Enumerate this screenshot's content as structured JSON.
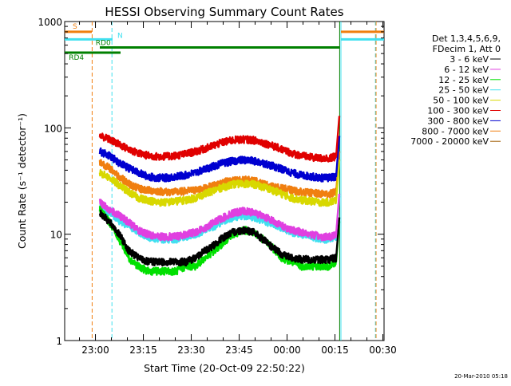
{
  "chart_data": {
    "type": "line",
    "title": "HESSI Observing Summary Count Rates",
    "xlabel": "Start Time (20-Oct-09 22:50:22)",
    "ylabel": "Count Rate (s⁻¹ detector⁻¹)",
    "yscale": "log",
    "ylim": [
      1,
      1000
    ],
    "xlim_minutes_after_start": [
      0,
      100
    ],
    "x_ticks": [
      "23:00",
      "23:15",
      "23:30",
      "23:45",
      "00:00",
      "00:15",
      "00:30"
    ],
    "x_tick_minutes": [
      9.633,
      24.633,
      39.633,
      54.633,
      69.633,
      84.633,
      99.633
    ],
    "y_ticks": [
      "1",
      "10",
      "100",
      "1000"
    ],
    "y_tick_values": [
      1,
      10,
      100,
      1000
    ],
    "legend_header": [
      "Det 1,3,4,5,6,9,",
      "FDecim 1, Att 0"
    ],
    "legend_position": "right",
    "grid": false,
    "timestamp": "20-Mar-2010 05:18",
    "flags": [
      {
        "label": "S",
        "color": "#f07f10",
        "level": 800
      },
      {
        "label": "N",
        "color": "#40e0f0",
        "level": 680
      },
      {
        "label": "RD0",
        "color": "#008000",
        "level": 570
      },
      {
        "label": "RD4",
        "color": "#008000",
        "level": 510
      }
    ],
    "flag_bar_segments": {
      "S": [
        [
          0,
          8.5
        ],
        [
          86.5,
          100
        ]
      ],
      "N": [
        [
          0,
          15
        ],
        [
          86.5,
          100
        ]
      ],
      "RD0": [
        [
          11,
          86
        ]
      ],
      "RD4": [
        [
          0,
          17.5
        ]
      ]
    },
    "event_lines": [
      {
        "minute": 8.6,
        "color": "#f07f10",
        "style": "dashed"
      },
      {
        "minute": 14.8,
        "color": "#40e0f0",
        "style": "dashed"
      },
      {
        "minute": 86.1,
        "color": "#008000",
        "style": "solid"
      },
      {
        "minute": 86.5,
        "color": "#40e0f0",
        "style": "solid"
      },
      {
        "minute": 97.3,
        "color": "#40e0f0",
        "style": "dashed"
      },
      {
        "minute": 97.5,
        "color": "#f07f10",
        "style": "dashed"
      }
    ],
    "x_minutes": [
      11,
      14,
      17,
      20,
      23,
      26,
      29,
      32,
      35,
      38,
      41,
      44,
      47,
      50,
      53,
      56,
      59,
      62,
      65,
      68,
      71,
      74,
      77,
      80,
      83,
      85
    ],
    "series": [
      {
        "name": "3 - 6 keV",
        "color": "#000000",
        "values": [
          16,
          13,
          10,
          7,
          6,
          5.5,
          5.5,
          5.5,
          5.5,
          5.5,
          6,
          7,
          8,
          9.5,
          10.5,
          11,
          10.5,
          9,
          7.5,
          6.5,
          6,
          5.8,
          5.8,
          5.8,
          5.8,
          6
        ]
      },
      {
        "name": "6 - 12 keV",
        "color": "#e040e0",
        "values": [
          20,
          17,
          15,
          13,
          11,
          10,
          9.5,
          9.5,
          9.5,
          10,
          10.5,
          11.5,
          13,
          14.5,
          16,
          16.5,
          16,
          15,
          13.5,
          12,
          11,
          10.5,
          10,
          9.5,
          9.5,
          10
        ]
      },
      {
        "name": "12 - 25 keV",
        "color": "#00e000",
        "values": [
          17,
          13,
          9,
          6,
          5,
          4.5,
          4.5,
          4.5,
          4.5,
          5,
          5,
          6,
          7,
          8.5,
          10,
          11,
          10.5,
          9,
          7.5,
          6,
          5.5,
          5,
          5,
          5,
          5,
          5.5
        ]
      },
      {
        "name": "25 - 50 keV",
        "color": "#40e0f0",
        "values": [
          18,
          16,
          13.5,
          12,
          10.5,
          9.5,
          9,
          9,
          9,
          9.5,
          10,
          11,
          12,
          13.5,
          14.5,
          15,
          14.5,
          13.5,
          12.5,
          11.5,
          10.5,
          10,
          9.5,
          9,
          9,
          9.5
        ]
      },
      {
        "name": "50 - 100 keV",
        "color": "#d8d800",
        "values": [
          38,
          34,
          29,
          25,
          22,
          21,
          20,
          20,
          20.5,
          21,
          22,
          24,
          26,
          28,
          29.5,
          30,
          29.5,
          28,
          26,
          24,
          22,
          21,
          20.5,
          20,
          20,
          21
        ]
      },
      {
        "name": "100 - 300 keV",
        "color": "#e00000",
        "values": [
          85,
          78,
          70,
          63,
          58,
          55,
          54,
          54,
          55,
          57,
          60,
          64,
          69,
          74,
          77,
          78,
          77,
          73,
          68,
          63,
          58,
          55,
          53,
          52,
          52,
          54
        ]
      },
      {
        "name": "300 - 800 keV",
        "color": "#0000d0",
        "values": [
          60,
          55,
          47,
          42,
          38,
          35,
          34,
          34,
          35,
          36,
          38,
          41,
          44,
          47,
          49,
          50,
          49,
          47,
          44,
          41,
          38,
          36,
          35,
          34,
          34,
          35
        ]
      },
      {
        "name": "800 - 7000 keV",
        "color": "#f07f10",
        "values": [
          48,
          42,
          35,
          30,
          27,
          26,
          25.5,
          25,
          25,
          25.5,
          26,
          27,
          29,
          31,
          32,
          32.5,
          32,
          30,
          28,
          27,
          26,
          25,
          24.5,
          24,
          24,
          25
        ]
      },
      {
        "name": "7000 - 20000 keV",
        "color": "#a05a00",
        "values": []
      }
    ]
  }
}
